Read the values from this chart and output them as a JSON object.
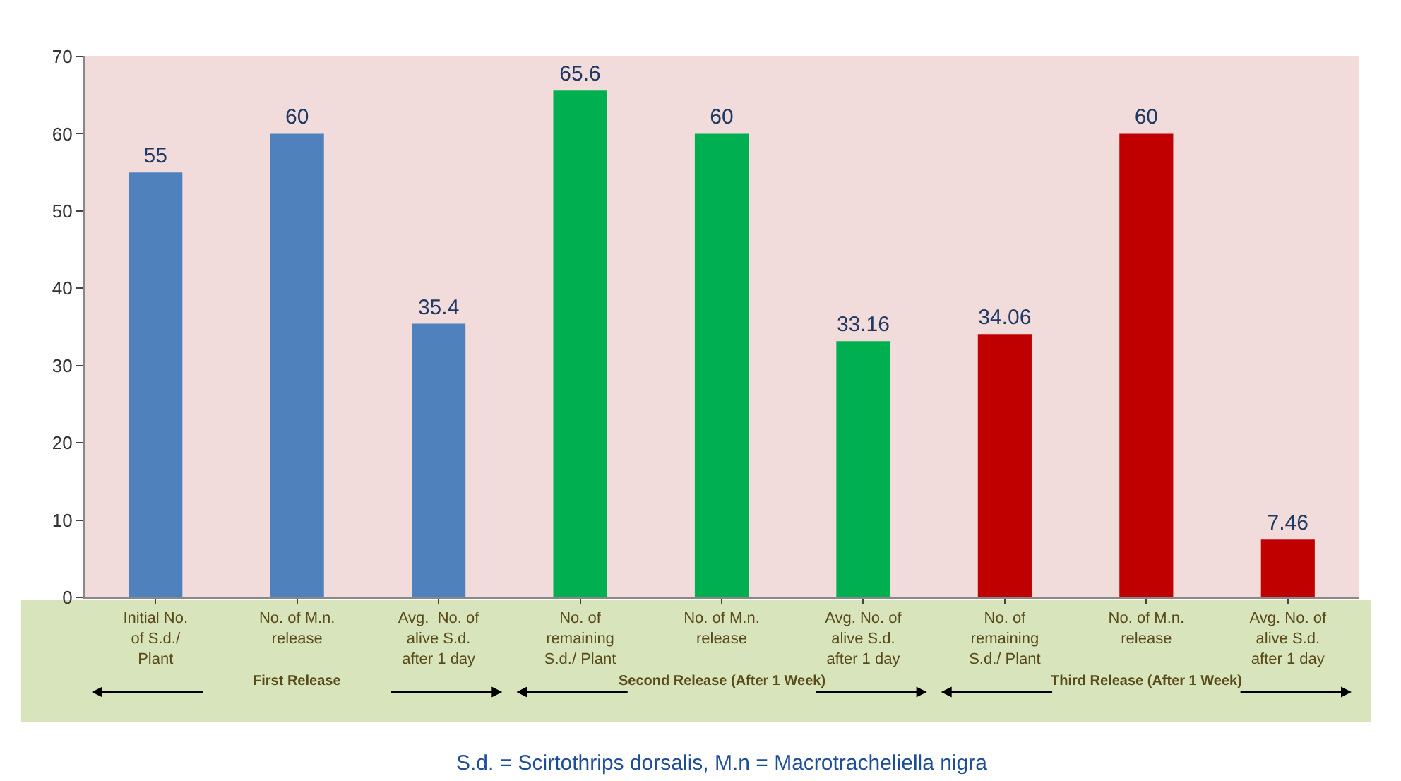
{
  "chart_data": {
    "type": "bar",
    "categories": [
      "Initial No.\nof S.d./\nPlant",
      "No. of M.n.\nrelease",
      "Avg.  No. of\nalive S.d.\nafter 1 day",
      "No. of\nremaining\nS.d./ Plant",
      "No. of M.n.\nrelease",
      "Avg. No. of\nalive S.d.\nafter 1 day",
      "No. of\nremaining\nS.d./ Plant",
      "No. of M.n.\nrelease",
      "Avg. No. of\nalive S.d.\nafter 1 day"
    ],
    "values": [
      55,
      60,
      35.4,
      65.6,
      60,
      33.16,
      34.06,
      60,
      7.46
    ],
    "colors": [
      "#4f81bd",
      "#4f81bd",
      "#4f81bd",
      "#00b050",
      "#00b050",
      "#00b050",
      "#c00000",
      "#c00000",
      "#c00000"
    ],
    "data_labels": true,
    "ylim": [
      0,
      70
    ],
    "yticks": [
      0,
      10,
      20,
      30,
      40,
      50,
      60,
      70
    ],
    "annotations": [
      "First Release",
      "Second Release (After 1 Week)",
      "Third Release (After 1 Week)",
      "S.d. = Scirtothrips dorsalis, M.n = Macrotracheliella nigra"
    ]
  }
}
